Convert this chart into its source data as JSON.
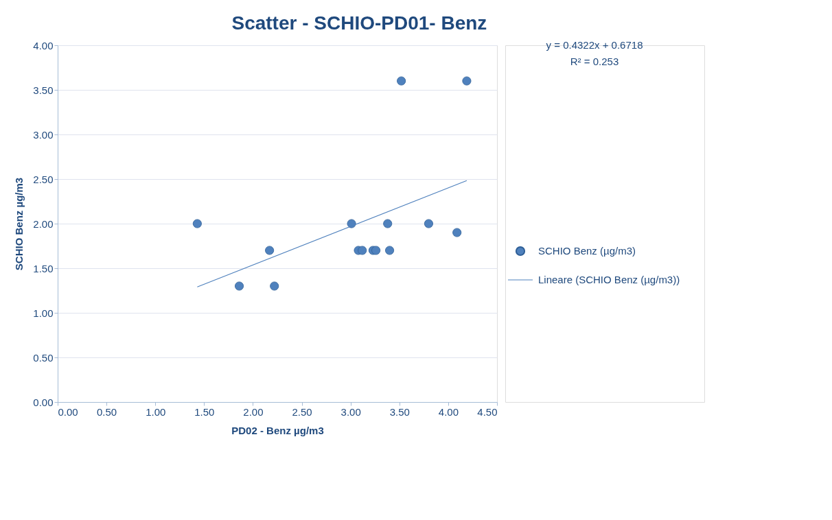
{
  "chart_data": {
    "type": "scatter",
    "title": "Scatter - SCHIO-PD01- Benz",
    "xlabel": "PD02 - Benz µg/m3",
    "ylabel": "SCHIO Benz µg/m3",
    "series": [
      {
        "name": "SCHIO Benz (µg/m3)",
        "color": "#4f81bd",
        "marker": "circle",
        "x": [
          1.43,
          1.86,
          2.17,
          2.22,
          3.01,
          3.08,
          3.12,
          3.23,
          3.26,
          3.38,
          3.4,
          3.52,
          3.8,
          4.09,
          4.19
        ],
        "values": [
          2.0,
          1.3,
          1.7,
          1.3,
          2.0,
          1.7,
          1.7,
          1.7,
          1.7,
          2.0,
          1.7,
          3.6,
          2.0,
          1.9,
          3.6
        ]
      },
      {
        "name": "Lineare (SCHIO Benz (µg/m3))",
        "color": "#4f81bd",
        "type": "line",
        "x": [
          1.43,
          4.19
        ],
        "values": [
          1.29,
          2.483
        ]
      }
    ],
    "xlim": [
      0,
      4.5
    ],
    "xticks": [
      {
        "value": 0,
        "label": "0.00"
      },
      {
        "value": 0.5,
        "label": "0.50"
      },
      {
        "value": 1,
        "label": "1.00"
      },
      {
        "value": 1.5,
        "label": "1.50"
      },
      {
        "value": 2,
        "label": "2.00"
      },
      {
        "value": 2.5,
        "label": "2.50"
      },
      {
        "value": 3,
        "label": "3.00"
      },
      {
        "value": 3.5,
        "label": "3.50"
      },
      {
        "value": 4,
        "label": "4.00"
      },
      {
        "value": 4.5,
        "label": "4.50"
      }
    ],
    "ylim": [
      0,
      4
    ],
    "yticks": [
      {
        "value": 0,
        "label": "0.00"
      },
      {
        "value": 0.5,
        "label": "0.50"
      },
      {
        "value": 1,
        "label": "1.00"
      },
      {
        "value": 1.5,
        "label": "1.50"
      },
      {
        "value": 2,
        "label": "2.00"
      },
      {
        "value": 2.5,
        "label": "2.50"
      },
      {
        "value": 3,
        "label": "3.00"
      },
      {
        "value": 3.5,
        "label": "3.50"
      },
      {
        "value": 4,
        "label": "4.00"
      }
    ],
    "grid": "y",
    "legend": "right",
    "annotations": [
      "y = 0.4322x + 0.6718",
      "R² = 0.253"
    ]
  }
}
